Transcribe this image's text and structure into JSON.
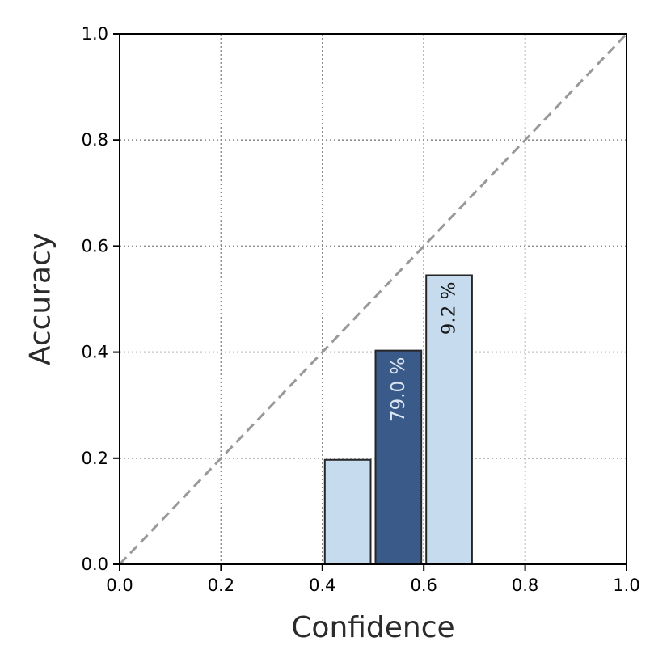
{
  "chart_data": {
    "type": "bar",
    "xlabel": "Confidence",
    "ylabel": "Accuracy",
    "xlim": [
      0.0,
      1.0
    ],
    "ylim": [
      0.0,
      1.0
    ],
    "xticks": [
      "0.0",
      "0.2",
      "0.4",
      "0.6",
      "0.8",
      "1.0"
    ],
    "yticks": [
      "0.0",
      "0.2",
      "0.4",
      "0.6",
      "0.8",
      "1.0"
    ],
    "grid": true,
    "bin_width": 0.1,
    "bins": [
      {
        "x_start": 0.0,
        "accuracy": 0.0,
        "share": null,
        "label": null
      },
      {
        "x_start": 0.1,
        "accuracy": 0.0,
        "share": null,
        "label": null
      },
      {
        "x_start": 0.2,
        "accuracy": 0.0,
        "share": null,
        "label": null
      },
      {
        "x_start": 0.3,
        "accuracy": 0.0,
        "share": null,
        "label": null
      },
      {
        "x_start": 0.4,
        "accuracy": 0.197,
        "share": null,
        "label": null
      },
      {
        "x_start": 0.5,
        "accuracy": 0.403,
        "share": 79.0,
        "label": "79.0 %"
      },
      {
        "x_start": 0.6,
        "accuracy": 0.545,
        "share": 9.2,
        "label": "9.2 %"
      },
      {
        "x_start": 0.7,
        "accuracy": 0.0,
        "share": null,
        "label": null
      },
      {
        "x_start": 0.8,
        "accuracy": 0.0,
        "share": null,
        "label": null
      },
      {
        "x_start": 0.9,
        "accuracy": 0.0,
        "share": null,
        "label": null
      }
    ],
    "reference_line": {
      "from": [
        0.0,
        0.0
      ],
      "to": [
        1.0,
        1.0
      ],
      "style": "dashed",
      "color": "#999999"
    },
    "colors": {
      "light": "#c6dcee",
      "dark": "#3a5a8a",
      "edge": "#262626",
      "grid": "#8c8c8c"
    }
  }
}
